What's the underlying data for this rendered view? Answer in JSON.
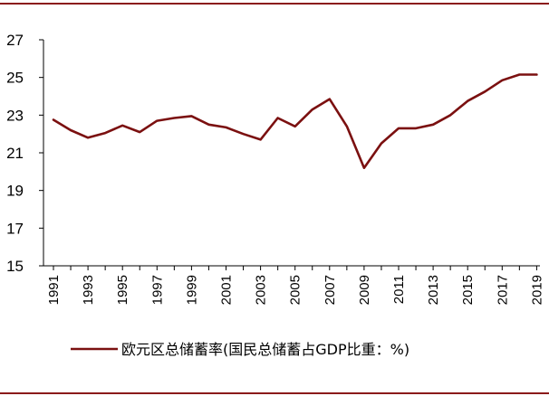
{
  "colors": {
    "frame": "#8B1A1A",
    "series": "#7B1010",
    "axis": "#000000"
  },
  "chart_data": {
    "type": "line",
    "title": "",
    "xlabel": "",
    "ylabel": "",
    "grid": false,
    "legend_position": "bottom",
    "ylim": [
      15,
      27
    ],
    "yticks": [
      15,
      17,
      19,
      21,
      23,
      25,
      27
    ],
    "x": [
      1991,
      1992,
      1993,
      1994,
      1995,
      1996,
      1997,
      1998,
      1999,
      2000,
      2001,
      2002,
      2003,
      2004,
      2005,
      2006,
      2007,
      2008,
      2009,
      2010,
      2011,
      2012,
      2013,
      2014,
      2015,
      2016,
      2017,
      2018,
      2019
    ],
    "xtick_labels": [
      "1991",
      "1993",
      "1995",
      "1997",
      "1999",
      "2001",
      "2003",
      "2005",
      "2007",
      "2009",
      "2011",
      "2013",
      "2015",
      "2017",
      "2019"
    ],
    "series": [
      {
        "name": "欧元区总储蓄率(国民总储蓄占GDP比重：%)",
        "values": [
          22.75,
          22.2,
          21.8,
          22.05,
          22.45,
          22.1,
          22.7,
          22.85,
          22.95,
          22.5,
          22.35,
          22.0,
          21.7,
          22.85,
          22.4,
          23.3,
          23.85,
          22.4,
          20.2,
          21.5,
          22.3,
          22.3,
          22.5,
          23.0,
          23.75,
          24.25,
          24.85,
          25.15,
          25.15
        ]
      }
    ]
  }
}
